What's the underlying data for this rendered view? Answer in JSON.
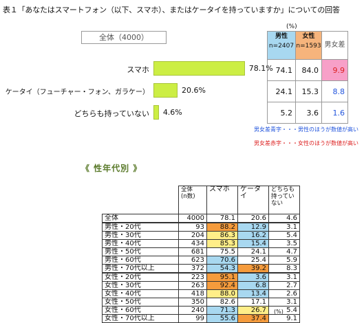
{
  "title": "表１「あなたはスマートフォン（以下、スマホ）、またはケータイを持っていますか」についての回答",
  "total_box": "全体（4000）",
  "percent_unit": "(%)",
  "chart_data": {
    "type": "bar",
    "categories": [
      "スマホ",
      "ケータイ（フューチャー・フォン、ガラケー）",
      "どちらも持っていない"
    ],
    "values": [
      78.1,
      20.6,
      4.6
    ],
    "value_labels": [
      "78.1%",
      "20.6%",
      "4.6%"
    ],
    "xlim": [
      0,
      100
    ],
    "bar_color": "#ccee44"
  },
  "gender_table": {
    "male_header": "男性",
    "male_n": "n=2407",
    "female_header": "女性",
    "female_n": "n=1593",
    "diff_header": "男女差",
    "rows": [
      {
        "male": "74.1",
        "female": "84.0",
        "diff": "9.9",
        "diff_color": "red",
        "highlight": true
      },
      {
        "male": "24.1",
        "female": "15.3",
        "diff": "8.8",
        "diff_color": "blue",
        "highlight": false
      },
      {
        "male": "5.2",
        "female": "3.6",
        "diff": "1.6",
        "diff_color": "blue",
        "highlight": false
      }
    ]
  },
  "notes": {
    "blue": "男女差青字・・・男性のほうが数値が高い",
    "red": "男女差赤字・・・女性のほうが数値が高い"
  },
  "section_title": "《 性年代別 》",
  "age_table": {
    "headers": [
      "全体\n(n数)",
      "スマホ",
      "ケータイ",
      "どちらも\n持ってい\nない"
    ],
    "rows": [
      {
        "label": "全体",
        "n": "4000",
        "s": "78.1",
        "k": "20.6",
        "d": "4.6",
        "sc": "",
        "kc": ""
      },
      {
        "label": "男性・20代",
        "n": "93",
        "s": "88.2",
        "k": "12.9",
        "d": "3.1",
        "sc": "o",
        "kc": "b"
      },
      {
        "label": "男性・30代",
        "n": "204",
        "s": "86.3",
        "k": "16.2",
        "d": "5.4",
        "sc": "y",
        "kc": "b"
      },
      {
        "label": "男性・40代",
        "n": "434",
        "s": "85.3",
        "k": "15.4",
        "d": "3.5",
        "sc": "y",
        "kc": "b"
      },
      {
        "label": "男性・50代",
        "n": "681",
        "s": "75.5",
        "k": "24.1",
        "d": "4.7",
        "sc": "",
        "kc": ""
      },
      {
        "label": "男性・60代",
        "n": "623",
        "s": "70.6",
        "k": "25.4",
        "d": "5.9",
        "sc": "b",
        "kc": ""
      },
      {
        "label": "男性・70代以上",
        "n": "372",
        "s": "54.3",
        "k": "39.2",
        "d": "8.3",
        "sc": "b",
        "kc": "o"
      },
      {
        "label": "女性・20代",
        "n": "223",
        "s": "95.1",
        "k": "3.6",
        "d": "3.1",
        "sc": "o",
        "kc": "b"
      },
      {
        "label": "女性・30代",
        "n": "263",
        "s": "92.4",
        "k": "6.8",
        "d": "2.7",
        "sc": "o",
        "kc": "b"
      },
      {
        "label": "女性・40代",
        "n": "418",
        "s": "88.0",
        "k": "13.4",
        "d": "2.6",
        "sc": "y",
        "kc": "b"
      },
      {
        "label": "女性・50代",
        "n": "350",
        "s": "82.6",
        "k": "17.1",
        "d": "3.1",
        "sc": "",
        "kc": ""
      },
      {
        "label": "女性・60代",
        "n": "240",
        "s": "71.3",
        "k": "26.7",
        "d": "5.4",
        "sc": "b",
        "kc": "y"
      },
      {
        "label": "女性・70代以上",
        "n": "99",
        "s": "55.6",
        "k": "37.4",
        "d": "9.1",
        "sc": "b",
        "kc": "o"
      }
    ],
    "unit": "(%)"
  }
}
